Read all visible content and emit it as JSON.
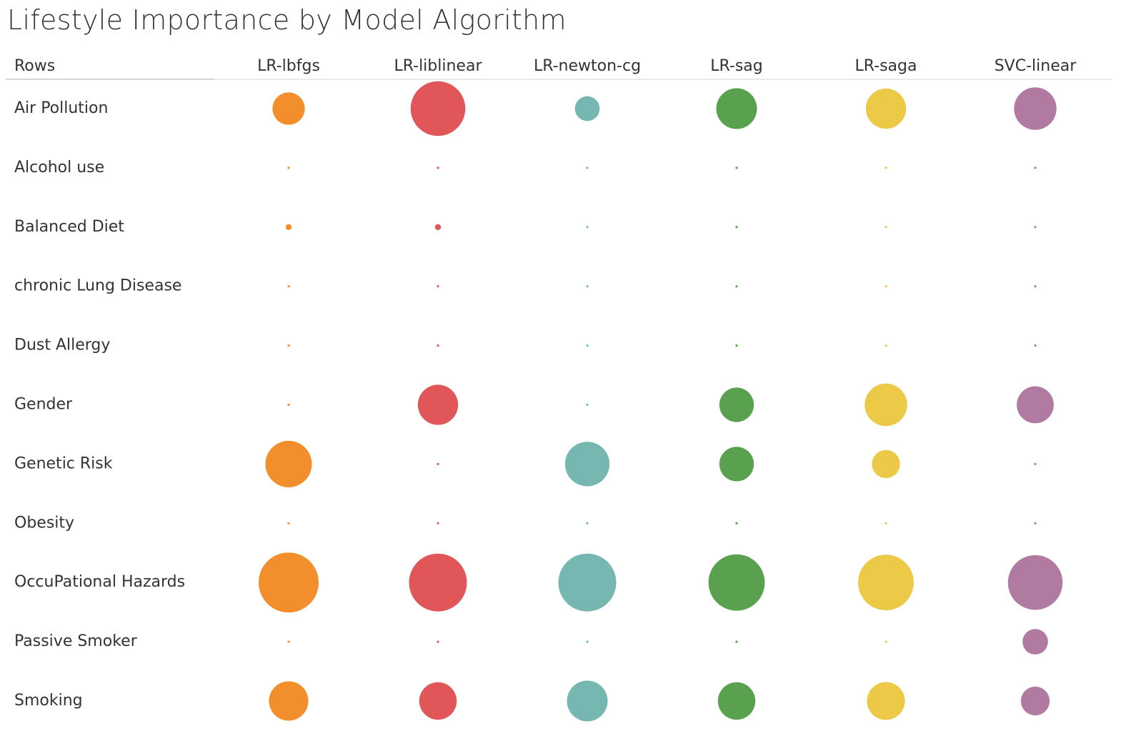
{
  "chart_data": {
    "type": "bubble-matrix",
    "title": "Lifestyle Importance by Model Algorithm",
    "rows_header": "Rows",
    "columns": [
      "LR-lbfgs",
      "LR-liblinear",
      "LR-newton-cg",
      "LR-sag",
      "LR-saga",
      "SVC-linear"
    ],
    "column_colors": [
      "#f28e2b",
      "#e15759",
      "#76b7b2",
      "#59a14f",
      "#edc948",
      "#b07aa1"
    ],
    "rows": [
      "Air Pollution",
      "Alcohol use",
      "Balanced Diet",
      "chronic Lung Disease",
      "Dust Allergy",
      "Gender",
      "Genetic Risk",
      "Obesity",
      "OccuPational Hazards",
      "Passive Smoker",
      "Smoking"
    ],
    "values": [
      [
        0.29,
        0.83,
        0.17,
        0.46,
        0.45,
        0.5
      ],
      [
        0.0,
        0.0,
        0.0,
        0.0,
        0.0,
        0.0
      ],
      [
        0.01,
        0.01,
        0.0,
        0.0,
        0.0,
        0.0
      ],
      [
        0.0,
        0.0,
        0.0,
        0.0,
        0.0,
        0.0
      ],
      [
        0.0,
        0.0,
        0.0,
        0.0,
        0.0,
        0.0
      ],
      [
        0.0,
        0.45,
        0.0,
        0.33,
        0.5,
        0.38
      ],
      [
        0.6,
        0.0,
        0.55,
        0.33,
        0.22,
        0.0
      ],
      [
        0.0,
        0.0,
        0.0,
        0.0,
        0.0,
        0.0
      ],
      [
        1.0,
        0.93,
        0.93,
        0.88,
        0.86,
        0.83
      ],
      [
        0.0,
        0.0,
        0.0,
        0.0,
        0.0,
        0.18
      ],
      [
        0.43,
        0.39,
        0.46,
        0.39,
        0.4,
        0.23
      ]
    ]
  }
}
